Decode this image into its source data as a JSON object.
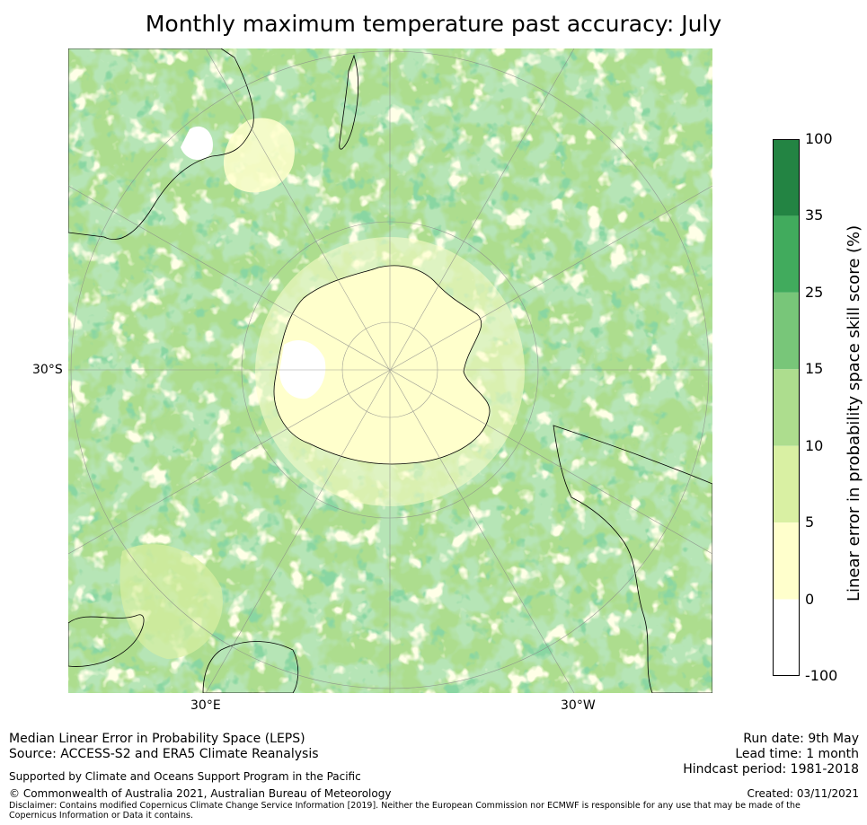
{
  "title": "Monthly maximum temperature past accuracy: July",
  "map": {
    "projection": "south-polar-stereographic",
    "longitude_labels": [
      "30°E",
      "30°W"
    ],
    "latitude_labels": [
      "30°S"
    ]
  },
  "colorbar": {
    "label": "Linear error in probability space skill score (%)",
    "ticks": [
      "100",
      "35",
      "25",
      "15",
      "10",
      "5",
      "0",
      "-100"
    ],
    "bins": [
      {
        "from": "35",
        "to": "100",
        "color": "#238443"
      },
      {
        "from": "25",
        "to": "35",
        "color": "#41ab5d"
      },
      {
        "from": "15",
        "to": "25",
        "color": "#78c679"
      },
      {
        "from": "10",
        "to": "15",
        "color": "#addd8e"
      },
      {
        "from": "5",
        "to": "10",
        "color": "#d9f0a3"
      },
      {
        "from": "0",
        "to": "5",
        "color": "#ffffcc"
      },
      {
        "from": "-100",
        "to": "0",
        "color": "#ffffff"
      }
    ]
  },
  "footer": {
    "left_line1": "Median Linear Error in Probability Space (LEPS)",
    "left_line2": "Source: ACCESS-S2 and ERA5 Climate Reanalysis",
    "supported": "Supported by Climate and Oceans Support Program in the Pacific",
    "copyright": "© Commonwealth of Australia 2021, Australian Bureau of Meteorology",
    "disclaimer": "Disclaimer: Contains modified Copernicus Climate Change Service Information [2019]. Neither the European Commission nor ECMWF is responsible for any use that may be made of the Copernicus Information or Data it contains.",
    "run_date": "Run date: 9th May",
    "lead_time": "Lead time: 1 month",
    "hindcast": "Hindcast period: 1981-2018",
    "created": "Created: 03/11/2021"
  }
}
